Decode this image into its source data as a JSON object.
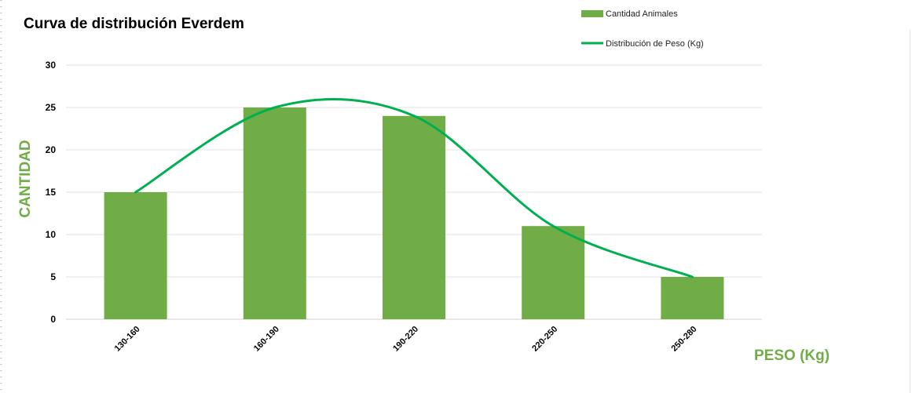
{
  "chart_data": {
    "type": "bar",
    "title": "Curva de distribución Everdem",
    "xlabel": "PESO (Kg)",
    "ylabel": "CANTIDAD",
    "categories": [
      "130-160",
      "160-190",
      "190-220",
      "220-250",
      "250-280"
    ],
    "series": [
      {
        "name": "Cantidad Animales",
        "type": "bar",
        "color": "#70ad47",
        "values": [
          15,
          25,
          24,
          11,
          5
        ]
      },
      {
        "name": "Distribución de Peso (Kg)",
        "type": "line",
        "smooth": true,
        "color": "#00b050",
        "values": [
          15,
          25,
          24,
          11,
          5
        ]
      }
    ],
    "ylim": [
      0,
      30
    ],
    "yticks": [
      0,
      5,
      10,
      15,
      20,
      25,
      30
    ],
    "grid": true,
    "legend_position": "top-right",
    "axis_label_color": "#70ad47"
  }
}
